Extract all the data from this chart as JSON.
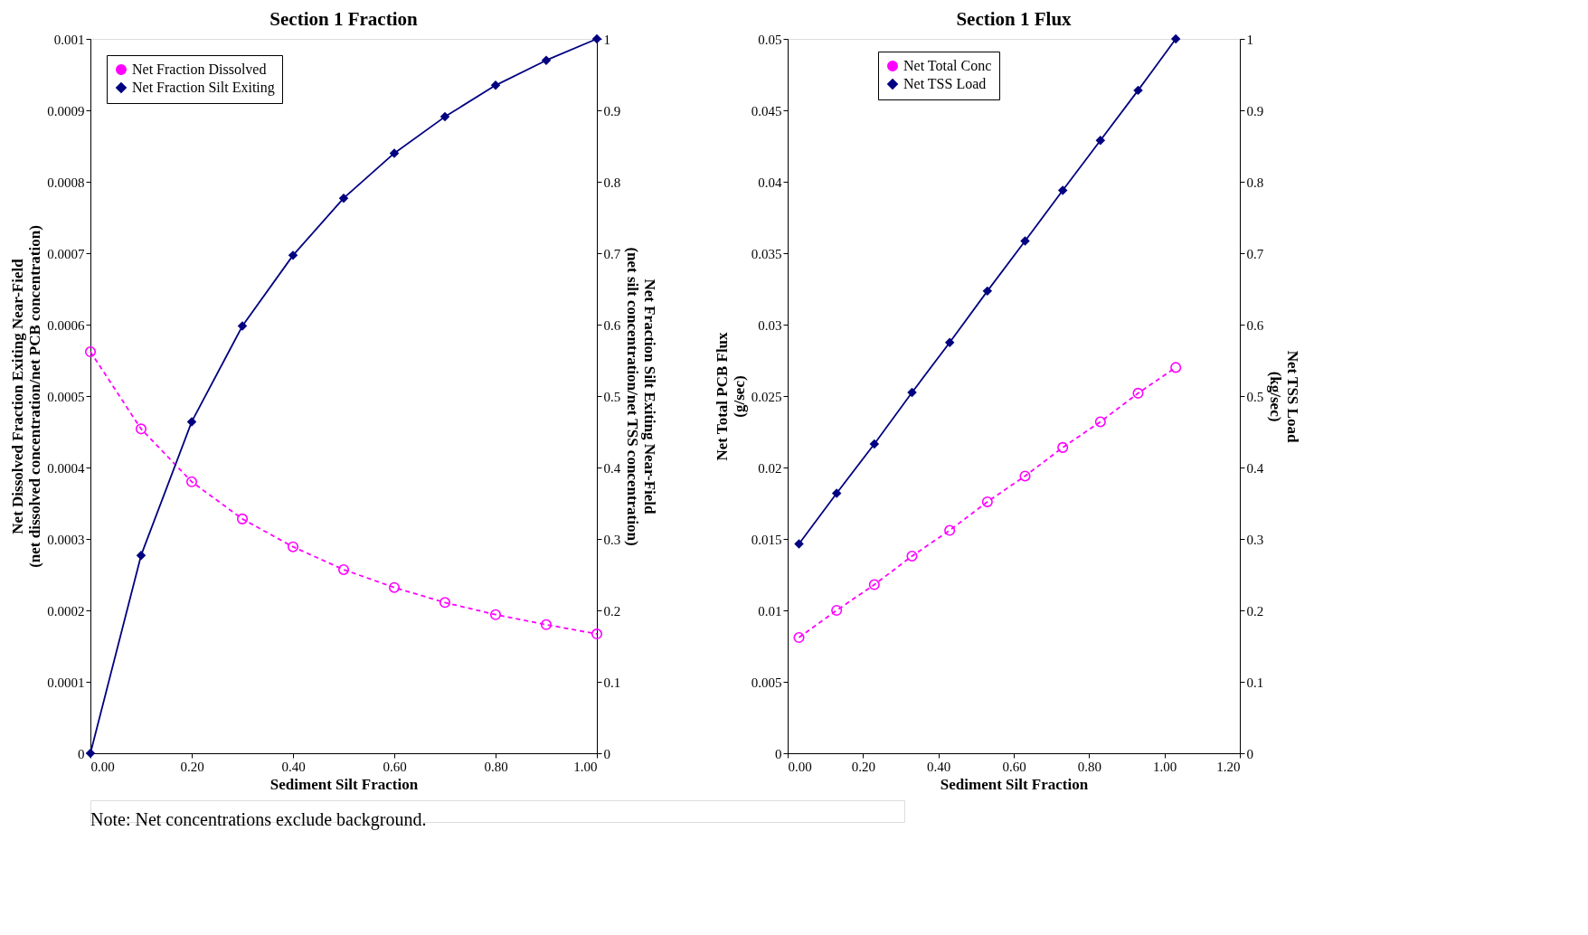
{
  "chart_data": [
    {
      "type": "line",
      "title": "Section 1 Fraction",
      "xlabel": "Sediment Silt Fraction",
      "ylabel": "Net Dissolved Fraction Exiting Near-Field\n(net dissolved concentration/net PCB concentration)",
      "y2label": "Net Fraction Silt Exiting Near-Field\n(net silt concentration/net TSS concentration)",
      "x": [
        0,
        0.1,
        0.2,
        0.3,
        0.4,
        0.5,
        0.6,
        0.7,
        0.8,
        0.9,
        1.0
      ],
      "xlim": [
        0,
        1
      ],
      "xticks": [
        {
          "value": 0,
          "label": "0.00"
        },
        {
          "value": 0.2,
          "label": "0.20"
        },
        {
          "value": 0.4,
          "label": "0.40"
        },
        {
          "value": 0.6,
          "label": "0.60"
        },
        {
          "value": 0.8,
          "label": "0.80"
        },
        {
          "value": 1,
          "label": "1.00"
        }
      ],
      "ylim": [
        0,
        0.001
      ],
      "yticks": [
        0,
        0.0001,
        0.0002,
        0.0003,
        0.0004,
        0.0005,
        0.0006,
        0.0007,
        0.0008,
        0.0009,
        0.001
      ],
      "y2lim": [
        0,
        1
      ],
      "y2ticks": [
        0,
        0.1,
        0.2,
        0.3,
        0.4,
        0.5,
        0.6,
        0.7,
        0.8,
        0.9,
        1
      ],
      "legend": "top left",
      "grid": false,
      "series": [
        {
          "name": "Net Fraction Dissolved",
          "color": "#ff00ff",
          "marker": "circle",
          "line_style": "dashed",
          "values": [
            0.000562,
            0.000454,
            0.00038,
            0.000328,
            0.000289,
            0.000257,
            0.000232,
            0.000211,
            0.000194,
            0.00018,
            0.000167
          ]
        },
        {
          "name": "Net Fraction Silt Exiting",
          "color": "#000080",
          "marker": "diamond",
          "line_style": "solid",
          "axis": "y2",
          "values": [
            0.0,
            0.277,
            0.464,
            0.598,
            0.697,
            0.777,
            0.84,
            0.891,
            0.935,
            0.97,
            1.0
          ]
        }
      ],
      "annotations": [
        "Note: Net concentrations exclude background."
      ]
    },
    {
      "type": "line",
      "title": "Section 1 Flux",
      "xlabel": "Sediment Silt Fraction",
      "ylabel": "Net Total PCB Flux\n(g/sec)",
      "y2label": "Net TSS Load\n(kg/sec)",
      "x": [
        0.03,
        0.13,
        0.23,
        0.33,
        0.43,
        0.53,
        0.63,
        0.73,
        0.83,
        0.93,
        1.03
      ],
      "xlim": [
        0,
        1.2
      ],
      "xticks": [
        {
          "value": 0,
          "label": "0.00"
        },
        {
          "value": 0.2,
          "label": "0.20"
        },
        {
          "value": 0.4,
          "label": "0.40"
        },
        {
          "value": 0.6,
          "label": "0.60"
        },
        {
          "value": 0.8,
          "label": "0.80"
        },
        {
          "value": 1,
          "label": "1.00"
        },
        {
          "value": 1.2,
          "label": "1.20"
        }
      ],
      "ylim": [
        0,
        0.05
      ],
      "yticks": [
        0,
        0.005,
        0.01,
        0.015,
        0.02,
        0.025,
        0.03,
        0.035,
        0.04,
        0.045,
        0.05
      ],
      "y2lim": [
        0,
        1
      ],
      "y2ticks": [
        0,
        0.1,
        0.2,
        0.3,
        0.4,
        0.5,
        0.6,
        0.7,
        0.8,
        0.9,
        1
      ],
      "legend": "top",
      "grid": false,
      "series": [
        {
          "name": "Net Total Conc",
          "color": "#ff00ff",
          "marker": "circle",
          "line_style": "dashed",
          "values": [
            0.0081,
            0.01,
            0.0118,
            0.0138,
            0.0156,
            0.0176,
            0.0194,
            0.0214,
            0.0232,
            0.0252,
            0.027
          ]
        },
        {
          "name": "Net TSS Load",
          "color": "#000080",
          "marker": "diamond",
          "line_style": "solid",
          "axis": "y2",
          "values": [
            0.293,
            0.364,
            0.433,
            0.505,
            0.575,
            0.647,
            0.717,
            0.788,
            0.858,
            0.928,
            1.0
          ]
        }
      ]
    }
  ]
}
